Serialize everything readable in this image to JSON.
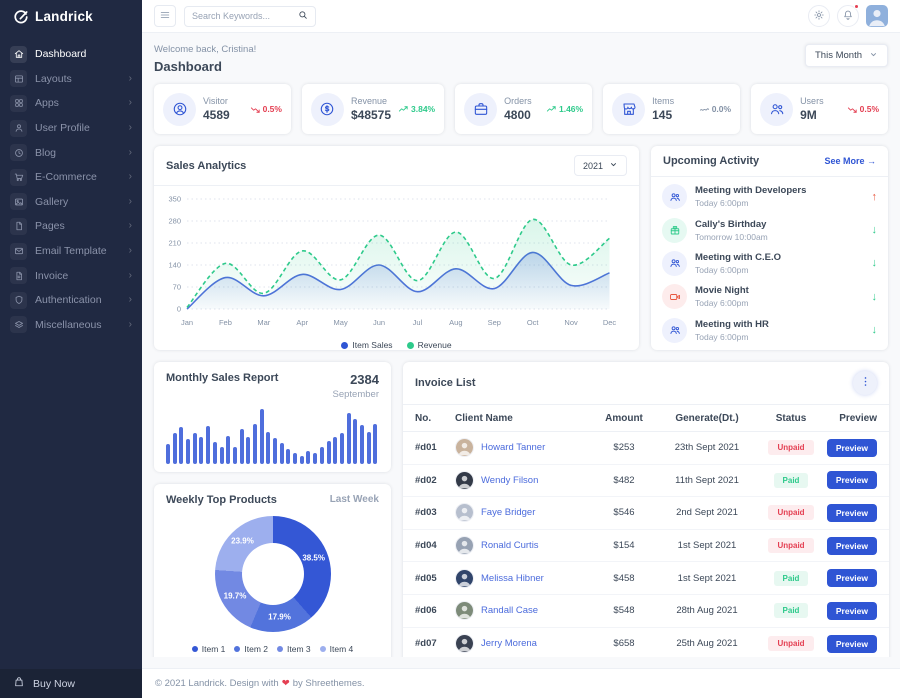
{
  "brand": {
    "name": "Landrick"
  },
  "topbar": {
    "search_placeholder": "Search Keywords...",
    "has_notification_dot": true
  },
  "sidebar": {
    "items": [
      {
        "label": "Dashboard",
        "icon": "home-icon",
        "active": true,
        "chevron": false
      },
      {
        "label": "Layouts",
        "icon": "layout-icon",
        "active": false,
        "chevron": true
      },
      {
        "label": "Apps",
        "icon": "grid-icon",
        "active": false,
        "chevron": true
      },
      {
        "label": "User Profile",
        "icon": "user-icon",
        "active": false,
        "chevron": true
      },
      {
        "label": "Blog",
        "icon": "clock-icon",
        "active": false,
        "chevron": true
      },
      {
        "label": "E-Commerce",
        "icon": "cart-icon",
        "active": false,
        "chevron": true
      },
      {
        "label": "Gallery",
        "icon": "image-icon",
        "active": false,
        "chevron": true
      },
      {
        "label": "Pages",
        "icon": "file-icon",
        "active": false,
        "chevron": true
      },
      {
        "label": "Email Template",
        "icon": "mail-icon",
        "active": false,
        "chevron": true
      },
      {
        "label": "Invoice",
        "icon": "file-text-icon",
        "active": false,
        "chevron": true
      },
      {
        "label": "Authentication",
        "icon": "shield-icon",
        "active": false,
        "chevron": true
      },
      {
        "label": "Miscellaneous",
        "icon": "layers-icon",
        "active": false,
        "chevron": true
      }
    ],
    "buy_now": "Buy Now"
  },
  "page": {
    "welcome": "Welcome back, Cristina!",
    "title": "Dashboard",
    "period_selector": "This Month"
  },
  "stats": [
    {
      "label": "Visitor",
      "value": "4589",
      "change": "0.5%",
      "trend": "down",
      "icon": "user-circle-icon"
    },
    {
      "label": "Revenue",
      "value": "$48575",
      "change": "3.84%",
      "trend": "up",
      "icon": "dollar-circle-icon"
    },
    {
      "label": "Orders",
      "value": "4800",
      "change": "1.46%",
      "trend": "up",
      "icon": "briefcase-icon"
    },
    {
      "label": "Items",
      "value": "145",
      "change": "0.0%",
      "trend": "flat",
      "icon": "store-icon"
    },
    {
      "label": "Users",
      "value": "9M",
      "change": "0.5%",
      "trend": "down",
      "icon": "users-icon"
    }
  ],
  "chart_data": [
    {
      "type": "line",
      "title": "Sales Analytics",
      "year_selector": "2021",
      "x": [
        "Jan",
        "Feb",
        "Mar",
        "Apr",
        "May",
        "Jun",
        "Jul",
        "Aug",
        "Sep",
        "Oct",
        "Nov",
        "Dec"
      ],
      "series": [
        {
          "name": "Item Sales",
          "color": "#4f6edc",
          "dot_color": "#2f55d4",
          "style": "solid",
          "values": [
            0,
            100,
            42,
            110,
            62,
            140,
            55,
            128,
            65,
            180,
            75,
            115
          ]
        },
        {
          "name": "Revenue",
          "color": "#2eca8b",
          "dot_color": "#2eca8b",
          "style": "dashed",
          "values": [
            5,
            145,
            50,
            185,
            93,
            235,
            90,
            245,
            97,
            285,
            140,
            225
          ]
        }
      ],
      "ylim": [
        0,
        350
      ],
      "yticks": [
        0,
        70,
        140,
        210,
        280,
        350
      ],
      "grid": "dotted-horizontal",
      "legend_position": "bottom"
    },
    {
      "type": "bar",
      "title": "Monthly Sales Report",
      "total": "2384",
      "month": "September",
      "color": "#4f6edc",
      "values": [
        35,
        55,
        66,
        45,
        56,
        48,
        68,
        40,
        30,
        50,
        30,
        62,
        48,
        72,
        98,
        58,
        46,
        38,
        26,
        20,
        14,
        24,
        20,
        30,
        42,
        48,
        55,
        92,
        80,
        70,
        58,
        72
      ]
    },
    {
      "type": "pie",
      "donut": true,
      "title": "Weekly Top Products",
      "period": "Last Week",
      "labels": [
        "Item 1",
        "Item 2",
        "Item 3",
        "Item 4"
      ],
      "values": [
        38.5,
        17.9,
        19.7,
        23.9
      ],
      "display": [
        "38.5%",
        "17.9%",
        "19.7%",
        "23.9%"
      ],
      "colors": [
        "#3457d5",
        "#5273dc",
        "#7289e3",
        "#9dafee"
      ],
      "legend_position": "bottom"
    }
  ],
  "activity": {
    "title": "Upcoming Activity",
    "see_more": "See More →",
    "items": [
      {
        "title": "Meeting with Developers",
        "time": "Today 6:00pm",
        "icon": "users-icon",
        "icon_color": "blue",
        "direction": "up"
      },
      {
        "title": "Cally's Birthday",
        "time": "Tomorrow 10:00am",
        "icon": "gift-icon",
        "icon_color": "green",
        "direction": "down"
      },
      {
        "title": "Meeting with C.E.O",
        "time": "Today 6:00pm",
        "icon": "users-icon",
        "icon_color": "blue",
        "direction": "down"
      },
      {
        "title": "Movie Night",
        "time": "Today 6:00pm",
        "icon": "video-icon",
        "icon_color": "red",
        "direction": "down"
      },
      {
        "title": "Meeting with HR",
        "time": "Today 6:00pm",
        "icon": "users-icon",
        "icon_color": "blue",
        "direction": "down"
      }
    ]
  },
  "invoices": {
    "title": "Invoice List",
    "columns": [
      "No.",
      "Client Name",
      "Amount",
      "Generate(Dt.)",
      "Status",
      "Preview"
    ],
    "preview_label": "Preview",
    "rows": [
      {
        "no": "#d01",
        "client": "Howard Tanner",
        "amount": "$253",
        "date": "23th Sept 2021",
        "status": "Unpaid"
      },
      {
        "no": "#d02",
        "client": "Wendy Filson",
        "amount": "$482",
        "date": "11th Sept 2021",
        "status": "Paid"
      },
      {
        "no": "#d03",
        "client": "Faye Bridger",
        "amount": "$546",
        "date": "2nd Sept 2021",
        "status": "Unpaid"
      },
      {
        "no": "#d04",
        "client": "Ronald Curtis",
        "amount": "$154",
        "date": "1st Sept 2021",
        "status": "Unpaid"
      },
      {
        "no": "#d05",
        "client": "Melissa Hibner",
        "amount": "$458",
        "date": "1st Sept 2021",
        "status": "Paid"
      },
      {
        "no": "#d06",
        "client": "Randall Case",
        "amount": "$548",
        "date": "28th Aug 2021",
        "status": "Paid"
      },
      {
        "no": "#d07",
        "client": "Jerry Morena",
        "amount": "$658",
        "date": "25th Aug 2021",
        "status": "Unpaid"
      }
    ]
  },
  "footer": {
    "prefix": "© 2021 Landrick. Design with",
    "heart": "❤",
    "suffix": "by Shreethemes."
  },
  "colors": {
    "primary": "#2f55d4",
    "success": "#2eca8b",
    "danger": "#e43f52",
    "warning": "#e8573f",
    "muted": "#8492a6",
    "sidebar": "#202942"
  }
}
